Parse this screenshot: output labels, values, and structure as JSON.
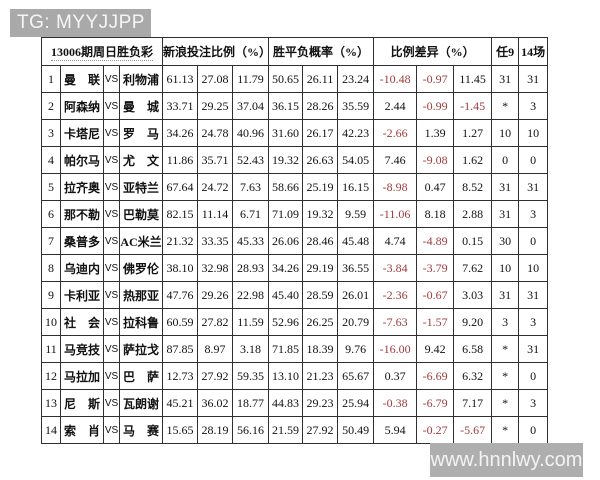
{
  "header_bar": {
    "label": "TG: MYYJJPP"
  },
  "watermark": {
    "label": "www.hnnlwy.com"
  },
  "colors": {
    "negative_text": "#a03c3c",
    "badge_bg": "#a9a9a9",
    "watermark_bg": "#aeaeae",
    "border": "#2f2f2f"
  },
  "table": {
    "title": "13006期周日胜负彩",
    "group_headers": [
      "新浪投注比例（%）",
      "胜平负概率（%）",
      "比例差异（%）"
    ],
    "extra_headers": [
      "任9",
      "14场"
    ],
    "vs_label": "VS",
    "rows": [
      {
        "no": "1",
        "home": "曼　联",
        "away": "利物浦",
        "bet": [
          "61.13",
          "27.08",
          "11.79"
        ],
        "prob": [
          "50.65",
          "26.11",
          "23.24"
        ],
        "diff": [
          "-10.48",
          "-0.97",
          "11.45"
        ],
        "ren9": "31",
        "field14": "31"
      },
      {
        "no": "2",
        "home": "阿森纳",
        "away": "曼　城",
        "bet": [
          "33.71",
          "29.25",
          "37.04"
        ],
        "prob": [
          "36.15",
          "28.26",
          "35.59"
        ],
        "diff": [
          "2.44",
          "-0.99",
          "-1.45"
        ],
        "ren9": "*",
        "field14": "3"
      },
      {
        "no": "3",
        "home": "卡塔尼",
        "away": "罗　马",
        "bet": [
          "34.26",
          "24.78",
          "40.96"
        ],
        "prob": [
          "31.60",
          "26.17",
          "42.23"
        ],
        "diff": [
          "-2.66",
          "1.39",
          "1.27"
        ],
        "ren9": "10",
        "field14": "10"
      },
      {
        "no": "4",
        "home": "帕尔马",
        "away": "尤　文",
        "bet": [
          "11.86",
          "35.71",
          "52.43"
        ],
        "prob": [
          "19.32",
          "26.63",
          "54.05"
        ],
        "diff": [
          "7.46",
          "-9.08",
          "1.62"
        ],
        "ren9": "0",
        "field14": "0"
      },
      {
        "no": "5",
        "home": "拉齐奥",
        "away": "亚特兰",
        "bet": [
          "67.64",
          "24.72",
          "7.63"
        ],
        "prob": [
          "58.66",
          "25.19",
          "16.15"
        ],
        "diff": [
          "-8.98",
          "0.47",
          "8.52"
        ],
        "ren9": "31",
        "field14": "31"
      },
      {
        "no": "6",
        "home": "那不勒",
        "away": "巴勒莫",
        "bet": [
          "82.15",
          "11.14",
          "6.71"
        ],
        "prob": [
          "71.09",
          "19.32",
          "9.59"
        ],
        "diff": [
          "-11.06",
          "8.18",
          "2.88"
        ],
        "ren9": "31",
        "field14": "3"
      },
      {
        "no": "7",
        "home": "桑普多",
        "away": "AC米兰",
        "bet": [
          "21.32",
          "33.35",
          "45.33"
        ],
        "prob": [
          "26.06",
          "28.46",
          "45.48"
        ],
        "diff": [
          "4.74",
          "-4.89",
          "0.15"
        ],
        "ren9": "30",
        "field14": "0"
      },
      {
        "no": "8",
        "home": "乌迪内",
        "away": "佛罗伦",
        "bet": [
          "38.10",
          "32.98",
          "28.93"
        ],
        "prob": [
          "34.26",
          "29.19",
          "36.55"
        ],
        "diff": [
          "-3.84",
          "-3.79",
          "7.62"
        ],
        "ren9": "10",
        "field14": "10"
      },
      {
        "no": "9",
        "home": "卡利亚",
        "away": "热那亚",
        "bet": [
          "47.76",
          "29.26",
          "22.98"
        ],
        "prob": [
          "45.40",
          "28.59",
          "26.01"
        ],
        "diff": [
          "-2.36",
          "-0.67",
          "3.03"
        ],
        "ren9": "31",
        "field14": "31"
      },
      {
        "no": "10",
        "home": "社　会",
        "away": "拉科鲁",
        "bet": [
          "60.59",
          "27.82",
          "11.59"
        ],
        "prob": [
          "52.96",
          "26.25",
          "20.79"
        ],
        "diff": [
          "-7.63",
          "-1.57",
          "9.20"
        ],
        "ren9": "3",
        "field14": "3"
      },
      {
        "no": "11",
        "home": "马竞技",
        "away": "萨拉戈",
        "bet": [
          "87.85",
          "8.97",
          "3.18"
        ],
        "prob": [
          "71.85",
          "18.39",
          "9.76"
        ],
        "diff": [
          "-16.00",
          "9.42",
          "6.58"
        ],
        "ren9": "*",
        "field14": "31"
      },
      {
        "no": "12",
        "home": "马拉加",
        "away": "巴　萨",
        "bet": [
          "12.73",
          "27.92",
          "59.35"
        ],
        "prob": [
          "13.10",
          "21.23",
          "65.67"
        ],
        "diff": [
          "0.37",
          "-6.69",
          "6.32"
        ],
        "ren9": "*",
        "field14": "0"
      },
      {
        "no": "13",
        "home": "尼　斯",
        "away": "瓦朗谢",
        "bet": [
          "45.21",
          "36.02",
          "18.77"
        ],
        "prob": [
          "44.83",
          "29.23",
          "25.94"
        ],
        "diff": [
          "-0.38",
          "-6.79",
          "7.17"
        ],
        "ren9": "*",
        "field14": "3"
      },
      {
        "no": "14",
        "home": "索　肖",
        "away": "马　赛",
        "bet": [
          "15.65",
          "28.19",
          "56.16"
        ],
        "prob": [
          "21.59",
          "27.92",
          "50.49"
        ],
        "diff": [
          "5.94",
          "-0.27",
          "-5.67"
        ],
        "ren9": "*",
        "field14": "0"
      }
    ]
  }
}
